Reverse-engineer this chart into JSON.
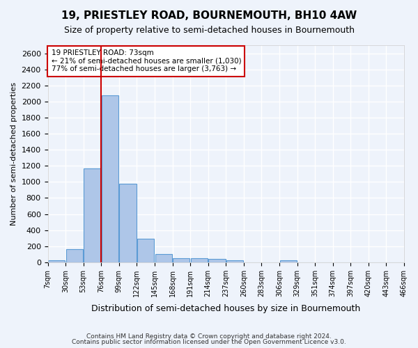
{
  "title": "19, PRIESTLEY ROAD, BOURNEMOUTH, BH10 4AW",
  "subtitle": "Size of property relative to semi-detached houses in Bournemouth",
  "xlabel": "Distribution of semi-detached houses by size in Bournemouth",
  "ylabel": "Number of semi-detached properties",
  "footer1": "Contains HM Land Registry data © Crown copyright and database right 2024.",
  "footer2": "Contains public sector information licensed under the Open Government Licence v3.0.",
  "annotation_line1": "19 PRIESTLEY ROAD: 73sqm",
  "annotation_line2": "← 21% of semi-detached houses are smaller (1,030)",
  "annotation_line3": "77% of semi-detached houses are larger (3,763) →",
  "bin_labels": [
    "7sqm",
    "30sqm",
    "53sqm",
    "76sqm",
    "99sqm",
    "122sqm",
    "145sqm",
    "168sqm",
    "191sqm",
    "214sqm",
    "237sqm",
    "260sqm",
    "283sqm",
    "306sqm",
    "329sqm",
    "351sqm",
    "374sqm",
    "397sqm",
    "420sqm",
    "443sqm",
    "466sqm"
  ],
  "bar_values": [
    20,
    160,
    1170,
    2080,
    980,
    290,
    100,
    50,
    50,
    40,
    25,
    0,
    0,
    25,
    0,
    0,
    0,
    0,
    0,
    0
  ],
  "bar_color": "#aec6e8",
  "bar_edge_color": "#5b9bd5",
  "ylim": [
    0,
    2700
  ],
  "yticks": [
    0,
    200,
    400,
    600,
    800,
    1000,
    1200,
    1400,
    1600,
    1800,
    2000,
    2200,
    2400,
    2600
  ],
  "annotation_box_color": "#cc0000",
  "vline_color": "#cc0000",
  "background_color": "#eef3fb",
  "grid_color": "#ffffff"
}
